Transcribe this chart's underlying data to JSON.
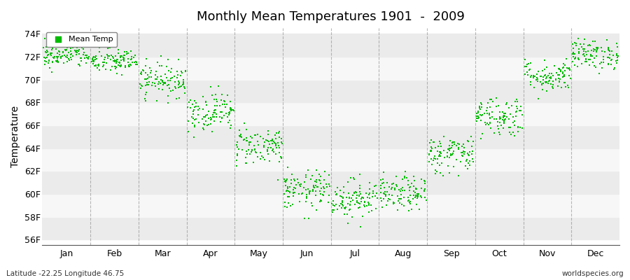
{
  "title": "Monthly Mean Temperatures 1901  -  2009",
  "ylabel": "Temperature",
  "xlabel_bottom_left": "Latitude -22.25 Longitude 46.75",
  "xlabel_bottom_right": "worldspecies.org",
  "months": [
    "Jan",
    "Feb",
    "Mar",
    "Apr",
    "May",
    "Jun",
    "Jul",
    "Aug",
    "Sep",
    "Oct",
    "Nov",
    "Dec"
  ],
  "yticks": [
    56,
    58,
    60,
    62,
    64,
    66,
    68,
    70,
    72,
    74
  ],
  "ytick_labels": [
    "56F",
    "58F",
    "60F",
    "62F",
    "64F",
    "66F",
    "68F",
    "70F",
    "72F",
    "74F"
  ],
  "ylim": [
    55.5,
    74.5
  ],
  "dot_color": "#00bb00",
  "dot_size": 3,
  "background_color": "#ffffff",
  "band_colors": [
    "#ebebeb",
    "#f7f7f7"
  ],
  "grid_color": "#999999",
  "n_years": 109,
  "monthly_means": [
    72.1,
    71.6,
    70.0,
    67.2,
    64.2,
    60.3,
    59.6,
    60.0,
    63.5,
    66.8,
    70.3,
    72.2
  ],
  "monthly_stds": [
    0.55,
    0.55,
    0.75,
    0.85,
    0.85,
    0.85,
    0.85,
    0.75,
    0.85,
    0.9,
    0.7,
    0.65
  ],
  "seed": 42
}
